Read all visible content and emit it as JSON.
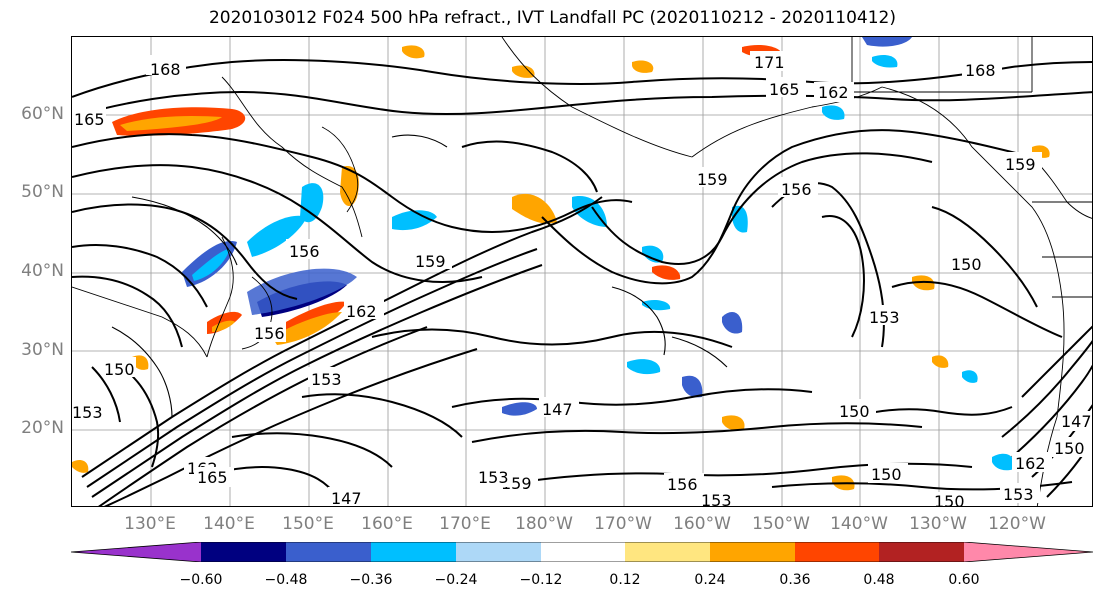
{
  "title": "2020103012 F024 500 hPa refract., IVT Landfall PC (2020110212 - 2020110412)",
  "lat_labels": [
    "60°N",
    "50°N",
    "40°N",
    "30°N",
    "20°N"
  ],
  "lon_labels": [
    "130°E",
    "140°E",
    "150°E",
    "160°E",
    "170°E",
    "180°W",
    "170°W",
    "160°W",
    "150°W",
    "140°W",
    "130°W",
    "120°W"
  ],
  "colorbar": {
    "ticks": [
      "−0.60",
      "−0.48",
      "−0.36",
      "−0.24",
      "−0.12",
      "0.12",
      "0.24",
      "0.36",
      "0.48",
      "0.60"
    ],
    "colors": [
      "#9932cc",
      "#000080",
      "#3a5fcd",
      "#00bfff",
      "#add8f7",
      "#ffffff",
      "#ffe680",
      "#ffa500",
      "#ff4500",
      "#b22222",
      "#ff88aa"
    ]
  },
  "contour_labels": [
    "168",
    "165",
    "171",
    "165",
    "162",
    "168",
    "159",
    "156",
    "159",
    "156",
    "159",
    "162",
    "156",
    "150",
    "153",
    "150",
    "153",
    "147",
    "150",
    "162",
    "165",
    "159",
    "153",
    "150",
    "156",
    "153",
    "150",
    "147",
    "153",
    "162",
    "150",
    "153",
    "147"
  ]
}
